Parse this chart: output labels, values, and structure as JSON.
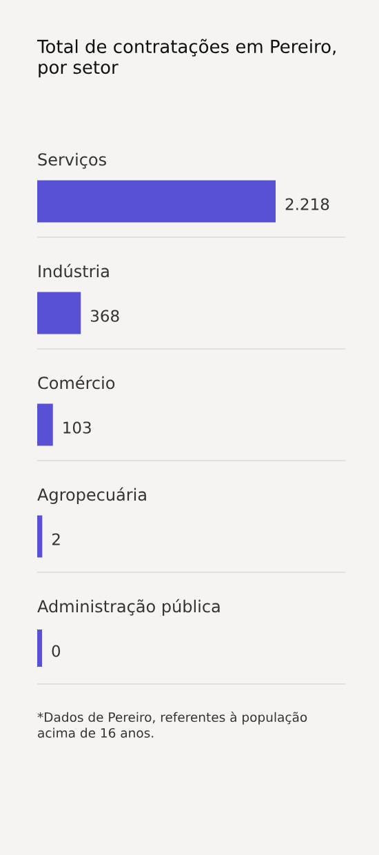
{
  "chart_data": {
    "type": "bar",
    "orientation": "horizontal",
    "title": "Total de contratações em Pereiro,\npor setor",
    "categories": [
      "Serviços",
      "Indústria",
      "Comércio",
      "Agropecuária",
      "Administração pública"
    ],
    "values": [
      2218,
      368,
      103,
      2,
      0
    ],
    "value_labels": [
      "2.218",
      "368",
      "103",
      "2",
      "0"
    ],
    "color": "#5851d5",
    "grid": "y",
    "tick_labels": "y",
    "annotations": [
      "*Dados de Pereiro, referentes à população\nacima de 16 anos."
    ]
  }
}
